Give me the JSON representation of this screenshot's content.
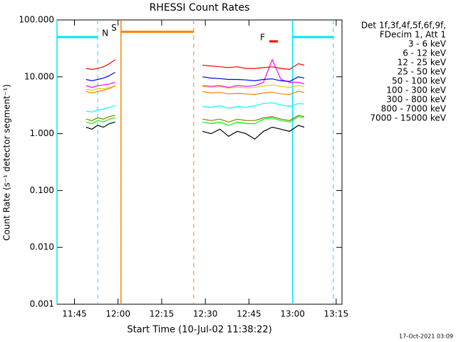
{
  "chart_data": {
    "type": "line",
    "title": "RHESSI Count Rates",
    "x_label": "Start Time (10-Jul-02 11:38:22)",
    "y_label": "Count Rate (s⁻¹ detector segment⁻¹)",
    "footer": "17-Oct-2021 03:09",
    "legend_title": [
      "Det 1f,3f,4f,5f,6f,9f,",
      "FDecim 1, Att 1"
    ],
    "log_y": true,
    "xlim": [
      "11:39",
      "13:17"
    ],
    "xticks": [
      "11:45",
      "12:00",
      "12:15",
      "12:30",
      "12:45",
      "13:00",
      "13:15"
    ],
    "ylim": [
      0.001,
      100
    ],
    "yticks": [
      {
        "value": 0.001,
        "label": "0.001"
      },
      {
        "value": 0.01,
        "label": "0.010"
      },
      {
        "value": 0.1,
        "label": "0.100"
      },
      {
        "value": 1,
        "label": "1.000"
      },
      {
        "value": 10,
        "label": "10.000"
      },
      {
        "value": 100,
        "label": "100.000"
      }
    ],
    "x": [
      "11:49",
      "11:51",
      "11:53",
      "11:55",
      "11:57",
      "11:59",
      "12:14",
      "12:29",
      "12:32",
      "12:35",
      "12:38",
      "12:41",
      "12:44",
      "12:47",
      "12:50",
      "12:53",
      "12:56",
      "12:59",
      "13:02",
      "13:04"
    ],
    "series": [
      {
        "name": "3 - 6 keV",
        "color": "#000000",
        "values": [
          1.3,
          1.2,
          1.4,
          1.3,
          1.5,
          1.6,
          null,
          1.1,
          1.0,
          1.2,
          0.9,
          1.1,
          1.0,
          0.8,
          1.1,
          1.3,
          1.2,
          1.1,
          1.4,
          1.3
        ]
      },
      {
        "name": "6 - 12 keV",
        "color": "#ff00ff",
        "values": [
          7,
          6.5,
          7,
          7.2,
          7.5,
          8,
          null,
          7,
          6.8,
          7,
          6.5,
          7,
          6.8,
          7,
          8,
          20,
          9,
          8,
          8,
          7.5
        ]
      },
      {
        "name": "12 - 25 keV",
        "color": "#00ff00",
        "values": [
          1.6,
          1.5,
          1.7,
          1.6,
          1.8,
          1.9,
          null,
          1.6,
          1.5,
          1.6,
          1.4,
          1.6,
          1.5,
          1.5,
          1.8,
          1.9,
          1.7,
          1.6,
          2.0,
          1.9
        ]
      },
      {
        "name": "25 - 50 keV",
        "color": "#00ffff",
        "values": [
          2.5,
          2.4,
          2.6,
          2.7,
          2.9,
          3.1,
          null,
          3.0,
          2.9,
          3.1,
          2.8,
          3.0,
          2.9,
          3.1,
          3.4,
          3.5,
          3.2,
          3.0,
          3.4,
          3.3
        ]
      },
      {
        "name": "50 - 100 keV",
        "color": "#e6c800",
        "values": [
          6,
          5.8,
          6.2,
          6.1,
          6.5,
          6.8,
          null,
          6.8,
          6.5,
          6.7,
          6.3,
          6.6,
          6.4,
          6.5,
          6.9,
          7.2,
          6.8,
          6.5,
          7,
          6.8
        ]
      },
      {
        "name": "100 - 300 keV",
        "color": "#ff0000",
        "values": [
          14,
          13.5,
          14,
          15,
          17,
          20,
          null,
          16,
          15.5,
          15,
          14.5,
          15,
          14,
          14,
          14.5,
          15,
          14,
          13.5,
          17,
          16
        ]
      },
      {
        "name": "300 - 800 keV",
        "color": "#0000ff",
        "values": [
          9,
          8.5,
          9,
          9.5,
          10.5,
          12,
          null,
          10,
          9.5,
          9.3,
          9,
          9,
          8.8,
          8.5,
          9,
          9.2,
          8.5,
          8.3,
          10,
          9.5
        ]
      },
      {
        "name": "800 - 7000 keV",
        "color": "#ff8000",
        "values": [
          5.5,
          5.2,
          5.5,
          5.8,
          6.2,
          7,
          null,
          5.5,
          5.2,
          5.3,
          5,
          5.1,
          5,
          4.9,
          5.2,
          5.4,
          5,
          4.9,
          5.6,
          5.3
        ]
      },
      {
        "name": "7000 - 15000 keV",
        "color": "#808000",
        "values": [
          1.8,
          1.7,
          1.9,
          1.8,
          2.0,
          2.1,
          null,
          1.8,
          1.7,
          1.8,
          1.6,
          1.8,
          1.7,
          1.7,
          1.9,
          2.0,
          1.8,
          1.7,
          2.1,
          2.0
        ]
      }
    ],
    "flags": [
      {
        "label": "N",
        "color": "#00e5ff",
        "level": 50,
        "vertical_lines": true,
        "periods": [
          {
            "start": "11:39",
            "end": "11:53"
          },
          {
            "start": "13:00",
            "end": "13:14"
          }
        ]
      },
      {
        "label": "S",
        "color": "#ff8000",
        "level": 62,
        "vertical_lines": true,
        "periods": [
          {
            "start": "12:01",
            "end": "12:26"
          }
        ]
      },
      {
        "label": "F",
        "color": "#ff0000",
        "level": 42,
        "vertical_lines": false,
        "periods": [
          {
            "start": "12:52",
            "end": "12:55"
          }
        ]
      }
    ]
  }
}
